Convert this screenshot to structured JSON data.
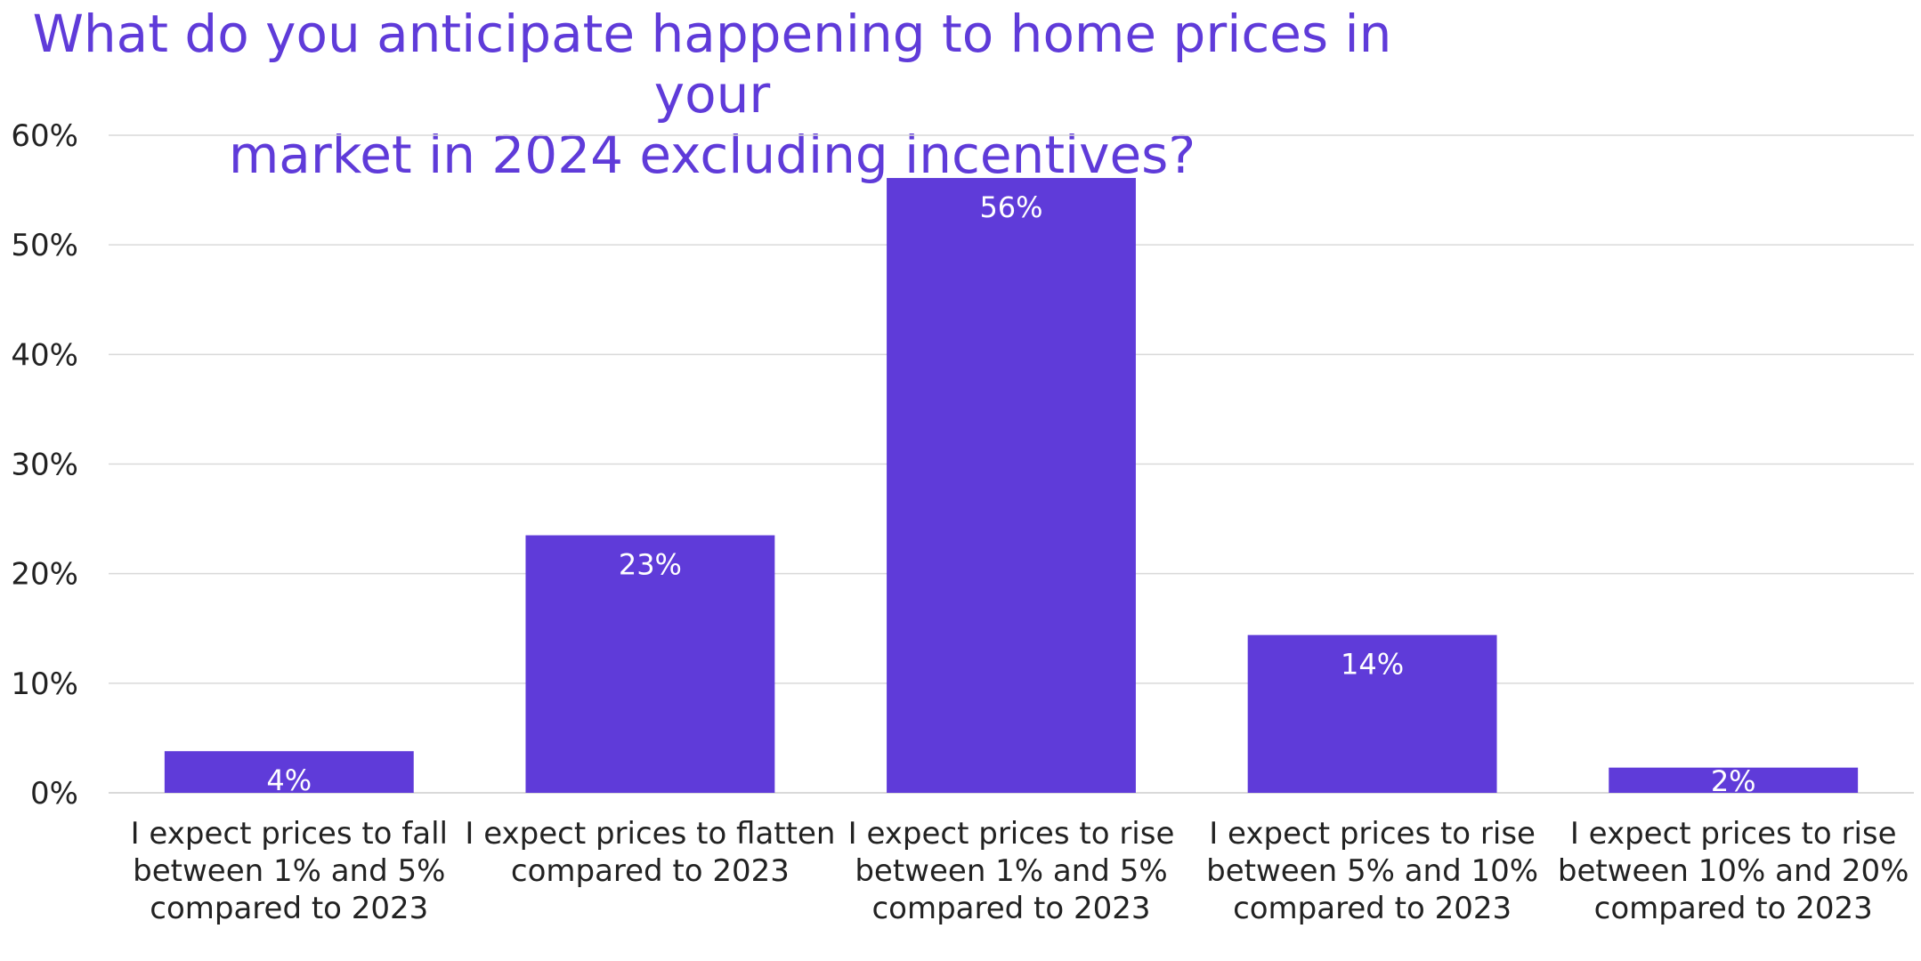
{
  "chart_data": {
    "type": "bar",
    "title_lines": [
      "What do you anticipate happening to home prices in your",
      "market in 2024 excluding incentives?"
    ],
    "categories": [
      [
        "I expect prices to fall",
        "between 1% and 5%",
        "compared to 2023"
      ],
      [
        "I expect prices to flatten",
        "compared to 2023"
      ],
      [
        "I expect prices to rise",
        "between 1% and 5%",
        "compared to 2023"
      ],
      [
        "I expect prices to rise",
        "between 5% and 10%",
        "compared to 2023"
      ],
      [
        "I expect prices to rise",
        "between 10% and 20%",
        "compared to 2023"
      ]
    ],
    "values": [
      3.8,
      23.5,
      56.1,
      14.4,
      2.3
    ],
    "data_labels": [
      "4%",
      "23%",
      "56%",
      "14%",
      "2%"
    ],
    "y_ticks": [
      "0%",
      "10%",
      "20%",
      "30%",
      "40%",
      "50%",
      "60%"
    ],
    "ylim": [
      0,
      60
    ],
    "grid": true,
    "bar_color": "#5f3bd9",
    "title_color": "#5f3bd9",
    "grid_color": "#d9d9d9"
  }
}
